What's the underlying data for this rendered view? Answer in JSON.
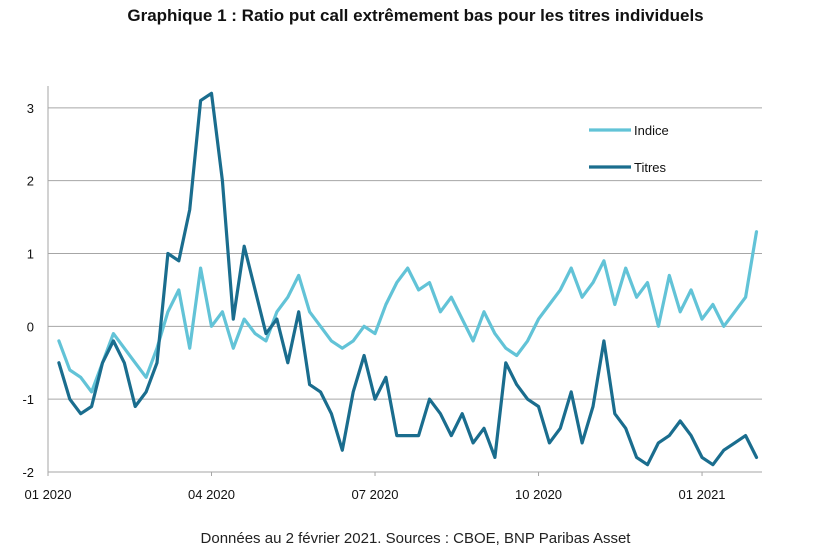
{
  "title": "Graphique 1 : Ratio put call extrêmement bas pour les titres individuels",
  "source": "Données au 2 février 2021. Sources : CBOE, BNP Paribas Asset",
  "chart_data": {
    "type": "line",
    "title": "Graphique 1 : Ratio put call extrêmement bas pour les titres individuels",
    "xlabel": "",
    "ylabel": "",
    "x_tick_labels": [
      "01 2020",
      "04 2020",
      "07 2020",
      "10 2020",
      "01 2021"
    ],
    "y_tick_labels": [
      "-2",
      "-1",
      "0",
      "1",
      "2",
      "3"
    ],
    "ylim": [
      -2,
      3.3
    ],
    "xlim": [
      0,
      13.1
    ],
    "grid": "horizontal",
    "legend_position": "top-right",
    "series": [
      {
        "name": "Indice",
        "color": "#62c3d7",
        "x": [
          0.2,
          0.4,
          0.6,
          0.8,
          1.0,
          1.2,
          1.4,
          1.6,
          1.8,
          2.0,
          2.2,
          2.4,
          2.6,
          2.8,
          3.0,
          3.2,
          3.4,
          3.6,
          3.8,
          4.0,
          4.2,
          4.4,
          4.6,
          4.8,
          5.0,
          5.2,
          5.4,
          5.6,
          5.8,
          6.0,
          6.2,
          6.4,
          6.6,
          6.8,
          7.0,
          7.2,
          7.4,
          7.6,
          7.8,
          8.0,
          8.2,
          8.4,
          8.6,
          8.8,
          9.0,
          9.2,
          9.4,
          9.6,
          9.8,
          10.0,
          10.2,
          10.4,
          10.6,
          10.8,
          11.0,
          11.2,
          11.4,
          11.6,
          11.8,
          12.0,
          12.2,
          12.4,
          12.6,
          12.8,
          13.0
        ],
        "values": [
          -0.2,
          -0.6,
          -0.7,
          -0.9,
          -0.5,
          -0.1,
          -0.3,
          -0.5,
          -0.7,
          -0.3,
          0.2,
          0.5,
          -0.3,
          0.8,
          0.0,
          0.2,
          -0.3,
          0.1,
          -0.1,
          -0.2,
          0.2,
          0.4,
          0.7,
          0.2,
          0.0,
          -0.2,
          -0.3,
          -0.2,
          0.0,
          -0.1,
          0.3,
          0.6,
          0.8,
          0.5,
          0.6,
          0.2,
          0.4,
          0.1,
          -0.2,
          0.2,
          -0.1,
          -0.3,
          -0.4,
          -0.2,
          0.1,
          0.3,
          0.5,
          0.8,
          0.4,
          0.6,
          0.9,
          0.3,
          0.8,
          0.4,
          0.6,
          0.0,
          0.7,
          0.2,
          0.5,
          0.1,
          0.3,
          0.0,
          0.2,
          0.4,
          1.3
        ]
      },
      {
        "name": "Titres",
        "color": "#1a6d8e",
        "x": [
          0.2,
          0.4,
          0.6,
          0.8,
          1.0,
          1.2,
          1.4,
          1.6,
          1.8,
          2.0,
          2.2,
          2.4,
          2.6,
          2.8,
          3.0,
          3.2,
          3.4,
          3.6,
          3.8,
          4.0,
          4.2,
          4.4,
          4.6,
          4.8,
          5.0,
          5.2,
          5.4,
          5.6,
          5.8,
          6.0,
          6.2,
          6.4,
          6.6,
          6.8,
          7.0,
          7.2,
          7.4,
          7.6,
          7.8,
          8.0,
          8.2,
          8.4,
          8.6,
          8.8,
          9.0,
          9.2,
          9.4,
          9.6,
          9.8,
          10.0,
          10.2,
          10.4,
          10.6,
          10.8,
          11.0,
          11.2,
          11.4,
          11.6,
          11.8,
          12.0,
          12.2,
          12.4,
          12.6,
          12.8,
          13.0
        ],
        "values": [
          -0.5,
          -1.0,
          -1.2,
          -1.1,
          -0.5,
          -0.2,
          -0.5,
          -1.1,
          -0.9,
          -0.5,
          1.0,
          0.9,
          1.6,
          3.1,
          3.2,
          2.0,
          0.1,
          1.1,
          0.5,
          -0.1,
          0.1,
          -0.5,
          0.2,
          -0.8,
          -0.9,
          -1.2,
          -1.7,
          -0.9,
          -0.4,
          -1.0,
          -0.7,
          -1.5,
          -1.5,
          -1.5,
          -1.0,
          -1.2,
          -1.5,
          -1.2,
          -1.6,
          -1.4,
          -1.8,
          -0.5,
          -0.8,
          -1.0,
          -1.1,
          -1.6,
          -1.4,
          -0.9,
          -1.6,
          -1.1,
          -0.2,
          -1.2,
          -1.4,
          -1.8,
          -1.9,
          -1.6,
          -1.5,
          -1.3,
          -1.5,
          -1.8,
          -1.9,
          -1.7,
          -1.6,
          -1.5,
          -1.8
        ]
      }
    ]
  }
}
